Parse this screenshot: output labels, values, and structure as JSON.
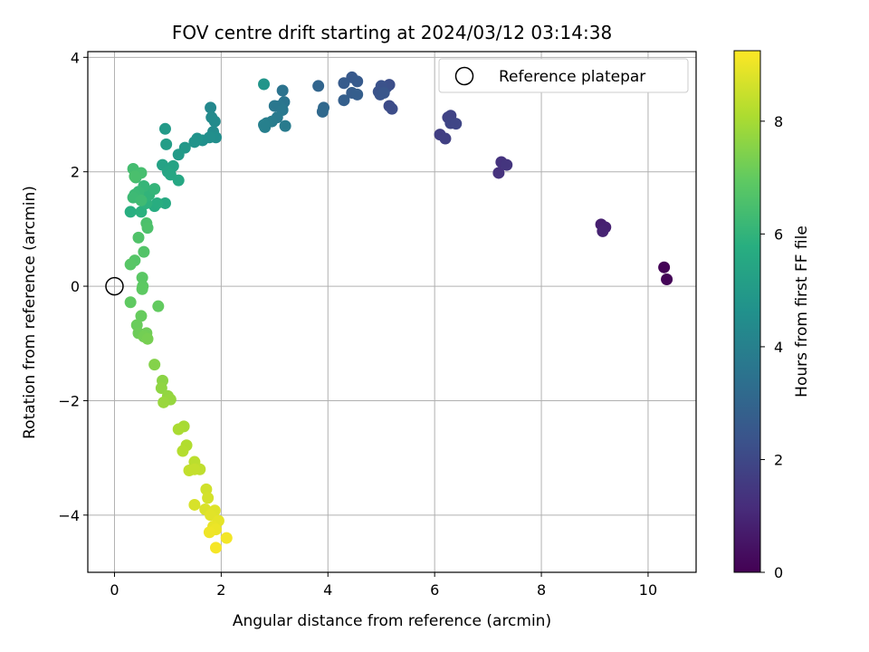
{
  "chart_data": {
    "type": "scatter",
    "title": "FOV centre drift starting at 2024/03/12 03:14:38",
    "xlabel": "Angular distance from reference (arcmin)",
    "ylabel": "Rotation from reference (arcmin)",
    "xlim": [
      -0.5,
      10.9
    ],
    "ylim": [
      -5.0,
      4.1
    ],
    "xticks": [
      0,
      2,
      4,
      6,
      8,
      10
    ],
    "xtick_labels": [
      "0",
      "2",
      "4",
      "6",
      "8",
      "10"
    ],
    "yticks": [
      -4,
      -2,
      0,
      2,
      4
    ],
    "ytick_labels": [
      "−4",
      "−2",
      "0",
      "2",
      "4"
    ],
    "grid": true,
    "colormap": "viridis",
    "colorbar": {
      "label": "Hours from first FF file",
      "range": [
        0,
        9.25
      ],
      "ticks": [
        0,
        2,
        4,
        6,
        8
      ],
      "tick_labels": [
        "0",
        "2",
        "4",
        "6",
        "8"
      ]
    },
    "legend": {
      "position": "top-right",
      "entries": [
        {
          "label": "Reference platepar",
          "marker": "open-circle"
        }
      ]
    },
    "reference_point": {
      "x": 0,
      "y": 0
    },
    "series": [
      {
        "points": [
          {
            "x": 10.3,
            "y": 0.33,
            "c": 0.05
          },
          {
            "x": 10.35,
            "y": 0.12,
            "c": 0.1
          },
          {
            "x": 9.12,
            "y": 1.08,
            "c": 0.8
          },
          {
            "x": 9.2,
            "y": 1.03,
            "c": 0.85
          },
          {
            "x": 9.15,
            "y": 0.96,
            "c": 0.9
          },
          {
            "x": 7.2,
            "y": 1.98,
            "c": 1.3
          },
          {
            "x": 7.25,
            "y": 2.17,
            "c": 1.35
          },
          {
            "x": 7.35,
            "y": 2.12,
            "c": 1.4
          },
          {
            "x": 6.1,
            "y": 2.65,
            "c": 1.7
          },
          {
            "x": 6.2,
            "y": 2.58,
            "c": 1.75
          },
          {
            "x": 6.25,
            "y": 2.95,
            "c": 1.8
          },
          {
            "x": 6.3,
            "y": 2.98,
            "c": 1.85
          },
          {
            "x": 6.3,
            "y": 2.85,
            "c": 1.9
          },
          {
            "x": 6.4,
            "y": 2.84,
            "c": 1.95
          },
          {
            "x": 5.15,
            "y": 3.15,
            "c": 2.1
          },
          {
            "x": 5.2,
            "y": 3.1,
            "c": 2.15
          },
          {
            "x": 5.15,
            "y": 3.52,
            "c": 2.2
          },
          {
            "x": 5.1,
            "y": 3.48,
            "c": 2.25
          },
          {
            "x": 5.0,
            "y": 3.5,
            "c": 2.3
          },
          {
            "x": 4.95,
            "y": 3.4,
            "c": 2.35
          },
          {
            "x": 4.98,
            "y": 3.35,
            "c": 2.4
          },
          {
            "x": 5.05,
            "y": 3.38,
            "c": 2.45
          },
          {
            "x": 4.45,
            "y": 3.65,
            "c": 2.55
          },
          {
            "x": 4.55,
            "y": 3.58,
            "c": 2.6
          },
          {
            "x": 4.3,
            "y": 3.55,
            "c": 2.65
          },
          {
            "x": 4.45,
            "y": 3.38,
            "c": 2.7
          },
          {
            "x": 4.55,
            "y": 3.35,
            "c": 2.75
          },
          {
            "x": 4.3,
            "y": 3.25,
            "c": 2.8
          },
          {
            "x": 3.82,
            "y": 3.5,
            "c": 3.0
          },
          {
            "x": 3.92,
            "y": 3.12,
            "c": 3.1
          },
          {
            "x": 3.9,
            "y": 3.05,
            "c": 3.15
          },
          {
            "x": 3.15,
            "y": 3.42,
            "c": 3.5
          },
          {
            "x": 3.18,
            "y": 3.22,
            "c": 3.55
          },
          {
            "x": 3.1,
            "y": 3.15,
            "c": 3.6
          },
          {
            "x": 3.0,
            "y": 3.15,
            "c": 3.65
          },
          {
            "x": 3.15,
            "y": 3.08,
            "c": 3.7
          },
          {
            "x": 3.05,
            "y": 2.95,
            "c": 3.75
          },
          {
            "x": 3.2,
            "y": 2.8,
            "c": 3.8
          },
          {
            "x": 2.95,
            "y": 2.88,
            "c": 3.85
          },
          {
            "x": 2.85,
            "y": 2.85,
            "c": 3.9
          },
          {
            "x": 2.82,
            "y": 2.78,
            "c": 3.95
          },
          {
            "x": 2.8,
            "y": 2.82,
            "c": 4.0
          },
          {
            "x": 2.8,
            "y": 3.53,
            "c": 4.8
          },
          {
            "x": 1.8,
            "y": 3.12,
            "c": 4.3
          },
          {
            "x": 1.82,
            "y": 2.95,
            "c": 4.35
          },
          {
            "x": 1.88,
            "y": 2.88,
            "c": 4.4
          },
          {
            "x": 1.85,
            "y": 2.7,
            "c": 4.45
          },
          {
            "x": 1.9,
            "y": 2.6,
            "c": 4.5
          },
          {
            "x": 1.78,
            "y": 2.6,
            "c": 4.55
          },
          {
            "x": 1.65,
            "y": 2.55,
            "c": 4.6
          },
          {
            "x": 1.55,
            "y": 2.58,
            "c": 4.7
          },
          {
            "x": 1.5,
            "y": 2.52,
            "c": 4.75
          },
          {
            "x": 1.32,
            "y": 2.42,
            "c": 4.9
          },
          {
            "x": 1.2,
            "y": 2.3,
            "c": 5.0
          },
          {
            "x": 0.95,
            "y": 2.75,
            "c": 5.0
          },
          {
            "x": 0.97,
            "y": 2.48,
            "c": 5.1
          },
          {
            "x": 0.9,
            "y": 2.12,
            "c": 5.3
          },
          {
            "x": 1.1,
            "y": 2.1,
            "c": 5.35
          },
          {
            "x": 1.0,
            "y": 2.0,
            "c": 5.4
          },
          {
            "x": 1.05,
            "y": 1.95,
            "c": 5.45
          },
          {
            "x": 1.2,
            "y": 1.85,
            "c": 5.5
          },
          {
            "x": 0.95,
            "y": 1.45,
            "c": 5.6
          },
          {
            "x": 0.75,
            "y": 1.4,
            "c": 5.7
          },
          {
            "x": 0.8,
            "y": 1.45,
            "c": 5.75
          },
          {
            "x": 0.3,
            "y": 1.3,
            "c": 5.8
          },
          {
            "x": 0.5,
            "y": 1.3,
            "c": 5.85
          },
          {
            "x": 0.6,
            "y": 1.45,
            "c": 5.9
          },
          {
            "x": 0.55,
            "y": 1.55,
            "c": 5.95
          },
          {
            "x": 0.65,
            "y": 1.6,
            "c": 6.0
          },
          {
            "x": 0.75,
            "y": 1.7,
            "c": 6.05
          },
          {
            "x": 0.55,
            "y": 1.75,
            "c": 6.1
          },
          {
            "x": 0.45,
            "y": 1.65,
            "c": 6.15
          },
          {
            "x": 0.38,
            "y": 1.6,
            "c": 6.2
          },
          {
            "x": 0.35,
            "y": 1.55,
            "c": 6.25
          },
          {
            "x": 0.5,
            "y": 1.5,
            "c": 6.3
          },
          {
            "x": 0.4,
            "y": 1.9,
            "c": 6.35
          },
          {
            "x": 0.35,
            "y": 2.05,
            "c": 6.4
          },
          {
            "x": 0.5,
            "y": 1.98,
            "c": 6.45
          },
          {
            "x": 0.38,
            "y": 1.92,
            "c": 6.5
          },
          {
            "x": 0.6,
            "y": 1.1,
            "c": 6.55
          },
          {
            "x": 0.62,
            "y": 1.02,
            "c": 6.6
          },
          {
            "x": 0.45,
            "y": 0.85,
            "c": 6.65
          },
          {
            "x": 0.55,
            "y": 0.6,
            "c": 6.7
          },
          {
            "x": 0.38,
            "y": 0.45,
            "c": 6.75
          },
          {
            "x": 0.3,
            "y": 0.38,
            "c": 6.8
          },
          {
            "x": 0.52,
            "y": 0.15,
            "c": 6.85
          },
          {
            "x": 0.53,
            "y": 0.0,
            "c": 6.9
          },
          {
            "x": 0.52,
            "y": -0.05,
            "c": 6.92
          },
          {
            "x": 0.3,
            "y": -0.28,
            "c": 6.95
          },
          {
            "x": 0.82,
            "y": -0.35,
            "c": 7.0
          },
          {
            "x": 0.5,
            "y": -0.52,
            "c": 7.05
          },
          {
            "x": 0.42,
            "y": -0.68,
            "c": 7.1
          },
          {
            "x": 0.45,
            "y": -0.82,
            "c": 7.15
          },
          {
            "x": 0.6,
            "y": -0.82,
            "c": 7.2
          },
          {
            "x": 0.55,
            "y": -0.88,
            "c": 7.25
          },
          {
            "x": 0.62,
            "y": -0.92,
            "c": 7.3
          },
          {
            "x": 0.75,
            "y": -1.37,
            "c": 7.5
          },
          {
            "x": 0.9,
            "y": -1.65,
            "c": 7.6
          },
          {
            "x": 0.88,
            "y": -1.78,
            "c": 7.65
          },
          {
            "x": 1.0,
            "y": -1.92,
            "c": 7.7
          },
          {
            "x": 1.05,
            "y": -1.98,
            "c": 7.75
          },
          {
            "x": 0.92,
            "y": -2.03,
            "c": 7.8
          },
          {
            "x": 1.3,
            "y": -2.45,
            "c": 8.0
          },
          {
            "x": 1.2,
            "y": -2.5,
            "c": 8.05
          },
          {
            "x": 1.35,
            "y": -2.78,
            "c": 8.15
          },
          {
            "x": 1.28,
            "y": -2.88,
            "c": 8.2
          },
          {
            "x": 1.5,
            "y": -3.07,
            "c": 8.3
          },
          {
            "x": 1.6,
            "y": -3.2,
            "c": 8.35
          },
          {
            "x": 1.4,
            "y": -3.22,
            "c": 8.4
          },
          {
            "x": 1.5,
            "y": -3.2,
            "c": 8.42
          },
          {
            "x": 1.72,
            "y": -3.55,
            "c": 8.6
          },
          {
            "x": 1.75,
            "y": -3.7,
            "c": 8.65
          },
          {
            "x": 1.5,
            "y": -3.82,
            "c": 8.7
          },
          {
            "x": 1.7,
            "y": -3.9,
            "c": 8.75
          },
          {
            "x": 1.88,
            "y": -3.92,
            "c": 8.8
          },
          {
            "x": 1.8,
            "y": -4.0,
            "c": 8.85
          },
          {
            "x": 1.95,
            "y": -4.1,
            "c": 8.9
          },
          {
            "x": 1.85,
            "y": -4.2,
            "c": 8.95
          },
          {
            "x": 1.9,
            "y": -4.25,
            "c": 9.0
          },
          {
            "x": 1.78,
            "y": -4.3,
            "c": 9.05
          },
          {
            "x": 2.1,
            "y": -4.4,
            "c": 9.1
          },
          {
            "x": 1.9,
            "y": -4.57,
            "c": 9.15
          }
        ]
      }
    ]
  }
}
